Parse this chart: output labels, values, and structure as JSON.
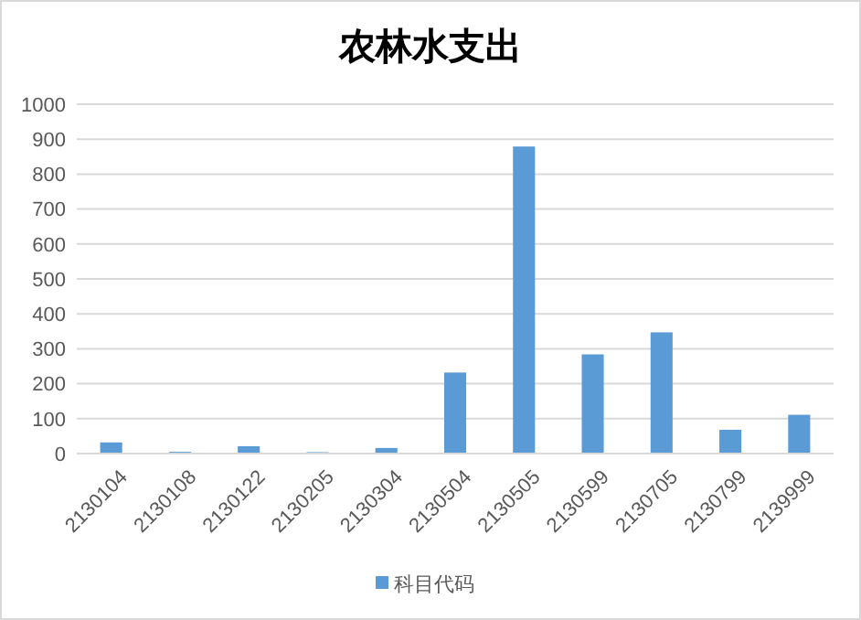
{
  "chart_data": {
    "type": "bar",
    "title": "农林水支出",
    "categories": [
      "2130104",
      "2130108",
      "2130122",
      "2130205",
      "2130304",
      "2130504",
      "2130505",
      "2130599",
      "2130705",
      "2130799",
      "2139999"
    ],
    "series": [
      {
        "name": "科目代码",
        "color": "#5b9bd5",
        "values": [
          32,
          5,
          21,
          4,
          16,
          232,
          879,
          284,
          347,
          68,
          111
        ]
      }
    ],
    "ylim": [
      0,
      1000
    ],
    "yticks": [
      0,
      100,
      200,
      300,
      400,
      500,
      600,
      700,
      800,
      900,
      1000
    ],
    "grid": "y",
    "legend": "bottom"
  }
}
